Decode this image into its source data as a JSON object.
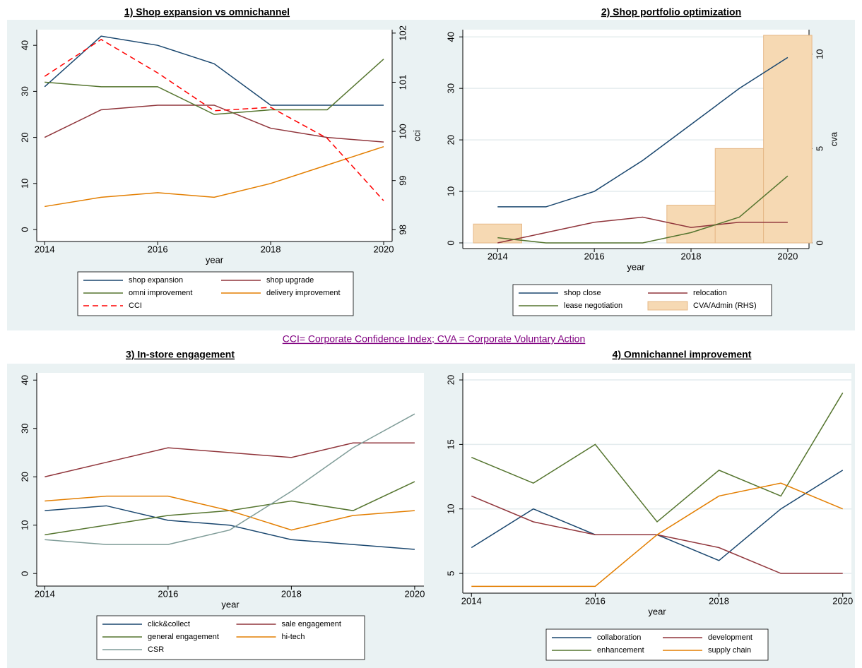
{
  "caption": "CCI= Corporate Confidence Index; CVA = Corporate Voluntary Action",
  "chart_data": [
    {
      "type": "line",
      "title": "1) Shop expansion vs omnichannel",
      "xlabel": "year",
      "y2label": "cci",
      "x": [
        2014,
        2015,
        2016,
        2017,
        2018,
        2019,
        2020
      ],
      "xlim": [
        2013.86,
        2020.15
      ],
      "xticks": [
        2014,
        2016,
        2018,
        2020
      ],
      "ylim": [
        -2.6,
        43.4
      ],
      "yticks": [
        0,
        10,
        20,
        30,
        40
      ],
      "y2lim": [
        97.76,
        102.07
      ],
      "y2ticks": [
        98,
        99,
        100,
        101,
        102
      ],
      "grid": false,
      "series": [
        {
          "name": "shop expansion",
          "color": "#1a476f",
          "values": [
            31,
            42,
            40,
            36,
            27,
            27,
            27
          ]
        },
        {
          "name": "shop upgrade",
          "color": "#90353b",
          "values": [
            20,
            26,
            27,
            27,
            22,
            20,
            19
          ]
        },
        {
          "name": "omni improvement",
          "color": "#55752f",
          "values": [
            32,
            31,
            31,
            25,
            26,
            26,
            37
          ]
        },
        {
          "name": "delivery improvement",
          "color": "#e37e00",
          "values": [
            5,
            7,
            8,
            7,
            10,
            14,
            18
          ]
        },
        {
          "name": "CCI",
          "color": "#ff0000",
          "style": "dashed",
          "axis": "y2",
          "values": [
            101.12,
            101.87,
            101.19,
            100.42,
            100.49,
            99.86,
            98.59
          ]
        }
      ]
    },
    {
      "type": "line",
      "title": "2) Shop portfolio optimization",
      "xlabel": "year",
      "y2label": "cva",
      "x": [
        2014,
        2015,
        2016,
        2017,
        2018,
        2019,
        2020
      ],
      "xlim": [
        2013.28,
        2020.44
      ],
      "xticks": [
        2014,
        2016,
        2018,
        2020
      ],
      "ylim": [
        -1.1,
        41.4
      ],
      "yticks": [
        0,
        10,
        20,
        30,
        40
      ],
      "y2lim": [
        -0.3,
        11.3
      ],
      "y2ticks": [
        0,
        5,
        10
      ],
      "grid": true,
      "series": [
        {
          "name": "shop close",
          "color": "#1a476f",
          "values": [
            7,
            7,
            10,
            16,
            23,
            30,
            36
          ]
        },
        {
          "name": "relocation",
          "color": "#90353b",
          "values": [
            0,
            2,
            4,
            5,
            3,
            4,
            4
          ]
        },
        {
          "name": "lease negotiation",
          "color": "#55752f",
          "values": [
            1,
            0,
            0,
            0,
            2,
            5,
            13
          ]
        },
        {
          "name": "CVA/Admin (RHS)",
          "color": "#f6d9b3",
          "type": "bar",
          "axis": "y2",
          "values": [
            1,
            0,
            0,
            0,
            2,
            5,
            11
          ]
        }
      ]
    },
    {
      "type": "line",
      "title": "3) In-store engagement",
      "xlabel": "year",
      "x": [
        2014,
        2015,
        2016,
        2017,
        2018,
        2019,
        2020
      ],
      "xlim": [
        2013.87,
        2020.15
      ],
      "xticks": [
        2014,
        2016,
        2018,
        2020
      ],
      "ylim": [
        -2.6,
        41.5
      ],
      "yticks": [
        0,
        10,
        20,
        30,
        40
      ],
      "grid": false,
      "series": [
        {
          "name": "click&collect",
          "color": "#1a476f",
          "values": [
            13,
            14,
            11,
            10,
            7,
            6,
            5
          ]
        },
        {
          "name": "sale engagement",
          "color": "#90353b",
          "values": [
            20,
            23,
            26,
            25,
            24,
            27,
            27
          ]
        },
        {
          "name": "general engagement",
          "color": "#55752f",
          "values": [
            8,
            10,
            12,
            13,
            15,
            13,
            19
          ]
        },
        {
          "name": "hi-tech",
          "color": "#e37e00",
          "values": [
            15,
            16,
            16,
            13,
            9,
            12,
            13
          ]
        },
        {
          "name": "CSR",
          "color": "#7f9c98",
          "values": [
            7,
            6,
            6,
            9,
            17,
            26,
            33
          ]
        }
      ]
    },
    {
      "type": "line",
      "title": "4) Omnichannel improvement",
      "xlabel": "year",
      "x": [
        2014,
        2015,
        2016,
        2017,
        2018,
        2019,
        2020
      ],
      "xlim": [
        2013.86,
        2020.14
      ],
      "xticks": [
        2014,
        2016,
        2018,
        2020
      ],
      "ylim": [
        3.47,
        20.55
      ],
      "yticks": [
        5,
        10,
        15,
        20
      ],
      "grid": true,
      "series": [
        {
          "name": "collaboration",
          "color": "#1a476f",
          "values": [
            7,
            10,
            8,
            8,
            6,
            10,
            13
          ]
        },
        {
          "name": "development",
          "color": "#90353b",
          "values": [
            11,
            9,
            8,
            8,
            7,
            5,
            5
          ]
        },
        {
          "name": "enhancement",
          "color": "#55752f",
          "values": [
            14,
            12,
            15,
            9,
            13,
            11,
            19
          ]
        },
        {
          "name": "supply chain",
          "color": "#e37e00",
          "values": [
            4,
            4,
            4,
            8,
            11,
            12,
            10
          ]
        }
      ]
    }
  ]
}
